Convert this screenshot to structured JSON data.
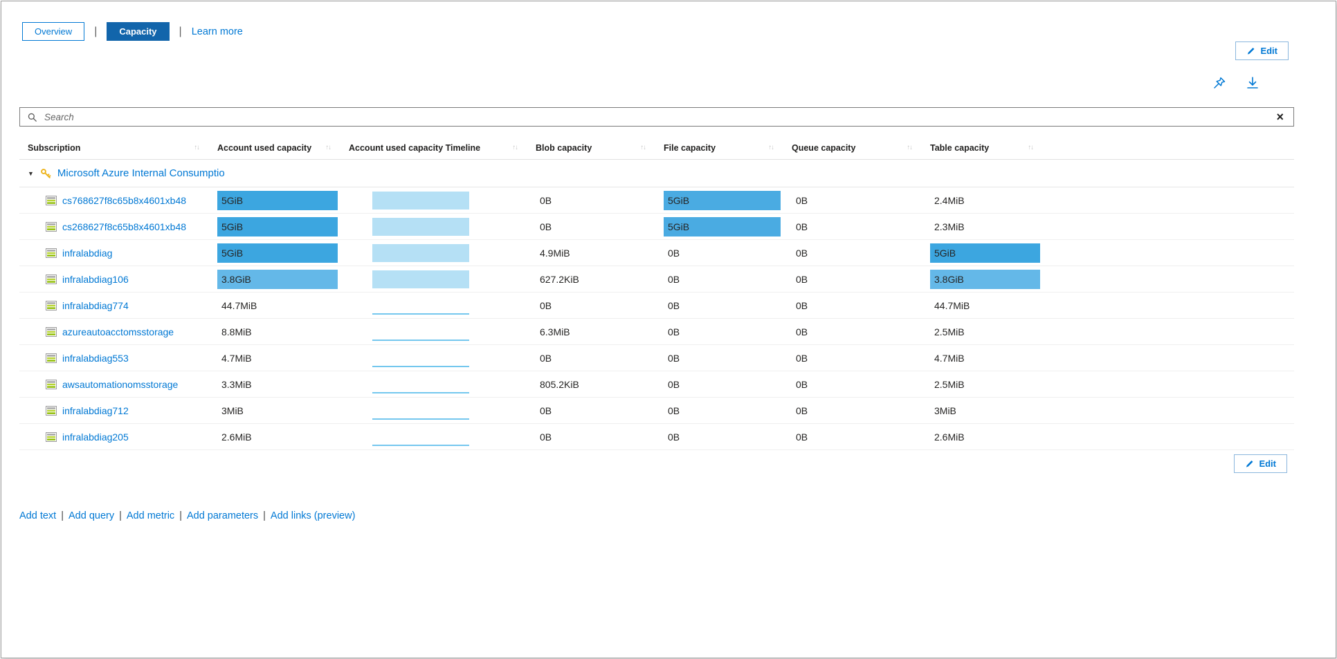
{
  "tabs": {
    "overview": "Overview",
    "capacity": "Capacity",
    "learn_more": "Learn more"
  },
  "buttons": {
    "edit": "Edit"
  },
  "search": {
    "placeholder": "Search"
  },
  "colors": {
    "link": "#0078d4",
    "tabSelected": "#1265ab",
    "tlFill": "#b5e0f5",
    "tlLine": "#74c7ee",
    "barStrong": "#3ca6e0",
    "barMedium": "#64b8e8",
    "barFile": "#4aabe2"
  },
  "table": {
    "columns": [
      {
        "label": "Subscription"
      },
      {
        "label": "Account used capacity"
      },
      {
        "label": "Account used capacity Timeline"
      },
      {
        "label": "Blob capacity"
      },
      {
        "label": "File capacity"
      },
      {
        "label": "Queue capacity"
      },
      {
        "label": "Table capacity"
      }
    ],
    "group_label": "Microsoft Azure Internal Consumptio",
    "rows": [
      {
        "name": "cs768627f8c65b8x4601xb48",
        "account_used": "5GiB",
        "account_fill": "#3ca6e0",
        "timeline": "area",
        "blob": "0B",
        "file": "5GiB",
        "file_fill": "#4aabe2",
        "queue": "0B",
        "table": "2.4MiB"
      },
      {
        "name": "cs268627f8c65b8x4601xb48",
        "account_used": "5GiB",
        "account_fill": "#3ca6e0",
        "timeline": "area",
        "blob": "0B",
        "file": "5GiB",
        "file_fill": "#4aabe2",
        "queue": "0B",
        "table": "2.3MiB"
      },
      {
        "name": "infralabdiag",
        "account_used": "5GiB",
        "account_fill": "#3ca6e0",
        "timeline": "area",
        "blob": "4.9MiB",
        "file": "0B",
        "queue": "0B",
        "table": "5GiB",
        "table_fill": "#3ca6e0"
      },
      {
        "name": "infralabdiag106",
        "account_used": "3.8GiB",
        "account_fill": "#64b8e8",
        "timeline": "area",
        "blob": "627.2KiB",
        "file": "0B",
        "queue": "0B",
        "table": "3.8GiB",
        "table_fill": "#64b8e8"
      },
      {
        "name": "infralabdiag774",
        "account_used": "44.7MiB",
        "timeline": "line",
        "blob": "0B",
        "file": "0B",
        "queue": "0B",
        "table": "44.7MiB"
      },
      {
        "name": "azureautoacctomsstorage",
        "account_used": "8.8MiB",
        "timeline": "line",
        "blob": "6.3MiB",
        "file": "0B",
        "queue": "0B",
        "table": "2.5MiB"
      },
      {
        "name": "infralabdiag553",
        "account_used": "4.7MiB",
        "timeline": "line",
        "blob": "0B",
        "file": "0B",
        "queue": "0B",
        "table": "4.7MiB"
      },
      {
        "name": "awsautomationomsstorage",
        "account_used": "3.3MiB",
        "timeline": "line",
        "blob": "805.2KiB",
        "file": "0B",
        "queue": "0B",
        "table": "2.5MiB"
      },
      {
        "name": "infralabdiag712",
        "account_used": "3MiB",
        "timeline": "line",
        "blob": "0B",
        "file": "0B",
        "queue": "0B",
        "table": "3MiB"
      },
      {
        "name": "infralabdiag205",
        "account_used": "2.6MiB",
        "timeline": "line",
        "blob": "0B",
        "file": "0B",
        "queue": "0B",
        "table": "2.6MiB"
      }
    ]
  },
  "footer_links": [
    "Add text",
    "Add query",
    "Add metric",
    "Add parameters",
    "Add links (preview)"
  ]
}
